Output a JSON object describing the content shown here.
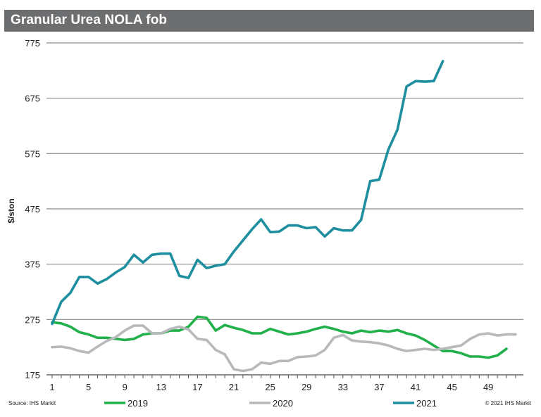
{
  "chart_data": {
    "type": "line",
    "title": "Granular Urea NOLA fob",
    "xlabel": "",
    "ylabel": "$/ston",
    "xlim": [
      1,
      52
    ],
    "ylim": [
      175,
      775
    ],
    "yticks": [
      175,
      275,
      375,
      475,
      575,
      675,
      775
    ],
    "xticks": [
      1,
      5,
      9,
      13,
      17,
      21,
      25,
      29,
      33,
      37,
      41,
      45,
      49
    ],
    "grid": "horizontal",
    "legend_position": "bottom",
    "colors": {
      "2019": "#22b04a",
      "2020": "#b8b9bb",
      "2021": "#1f8fa0"
    },
    "series": [
      {
        "name": "2019",
        "x": [
          1,
          2,
          3,
          4,
          5,
          6,
          7,
          8,
          9,
          10,
          11,
          12,
          13,
          14,
          15,
          16,
          17,
          18,
          19,
          20,
          21,
          22,
          23,
          24,
          25,
          26,
          27,
          28,
          29,
          30,
          31,
          32,
          33,
          34,
          35,
          36,
          37,
          38,
          39,
          40,
          41,
          42,
          43,
          44,
          45,
          46,
          47,
          48,
          49,
          50,
          51
        ],
        "values": [
          270,
          268,
          262,
          252,
          248,
          242,
          242,
          240,
          238,
          240,
          248,
          250,
          250,
          255,
          255,
          262,
          280,
          278,
          255,
          265,
          260,
          256,
          250,
          250,
          258,
          253,
          248,
          250,
          253,
          258,
          262,
          258,
          253,
          250,
          255,
          252,
          255,
          253,
          256,
          250,
          246,
          238,
          228,
          218,
          218,
          214,
          208,
          208,
          206,
          210,
          222
        ]
      },
      {
        "name": "2020",
        "x": [
          1,
          2,
          3,
          4,
          5,
          6,
          7,
          8,
          9,
          10,
          11,
          12,
          13,
          14,
          15,
          16,
          17,
          18,
          19,
          20,
          21,
          22,
          23,
          24,
          25,
          26,
          27,
          28,
          29,
          30,
          31,
          32,
          33,
          34,
          35,
          36,
          37,
          38,
          39,
          40,
          41,
          42,
          43,
          44,
          45,
          46,
          47,
          48,
          49,
          50,
          51,
          52
        ],
        "values": [
          225,
          226,
          223,
          218,
          215,
          226,
          236,
          243,
          255,
          264,
          264,
          250,
          250,
          258,
          262,
          257,
          240,
          238,
          220,
          212,
          185,
          182,
          185,
          197,
          195,
          200,
          200,
          207,
          208,
          210,
          220,
          242,
          247,
          237,
          235,
          234,
          232,
          228,
          222,
          218,
          220,
          222,
          220,
          222,
          225,
          228,
          240,
          248,
          250,
          246,
          248,
          248
        ]
      },
      {
        "name": "2021",
        "x": [
          1,
          2,
          3,
          4,
          5,
          6,
          7,
          8,
          9,
          10,
          11,
          12,
          13,
          14,
          15,
          16,
          17,
          18,
          19,
          20,
          21,
          22,
          23,
          24,
          25,
          26,
          27,
          28,
          29,
          30,
          31,
          32,
          33,
          34,
          35,
          36,
          37,
          38,
          39,
          40,
          41,
          42,
          43,
          44
        ],
        "values": [
          267,
          307,
          323,
          352,
          352,
          340,
          348,
          360,
          370,
          392,
          378,
          392,
          394,
          394,
          354,
          350,
          383,
          368,
          372,
          375,
          398,
          418,
          438,
          456,
          433,
          434,
          445,
          445,
          440,
          442,
          425,
          440,
          436,
          436,
          455,
          525,
          528,
          582,
          618,
          696,
          706,
          705,
          706,
          742
        ]
      }
    ]
  },
  "footer": {
    "source": "Source: IHS Markit",
    "copyright": "© 2021 IHS Markit"
  }
}
